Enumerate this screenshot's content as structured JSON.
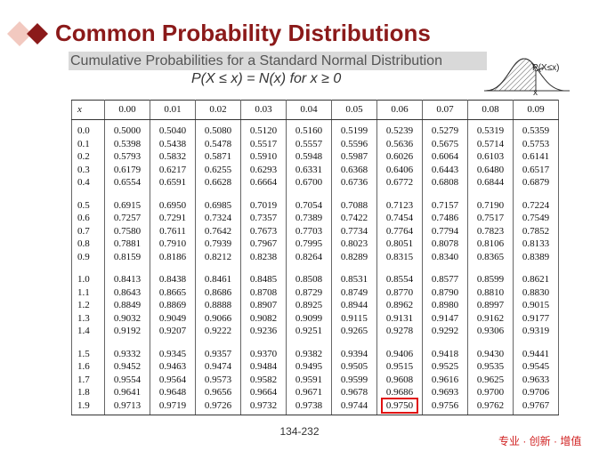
{
  "header": {
    "title": "Common Probability Distributions",
    "subtitle": "Cumulative Probabilities for a Standard Normal Distribution",
    "formula": "P(X ≤ x) = N(x) for x ≥ 0",
    "icon_label": "P(X≤x)",
    "icon_axis": "x"
  },
  "table": {
    "header": [
      "x",
      "0.00",
      "0.01",
      "0.02",
      "0.03",
      "0.04",
      "0.05",
      "0.06",
      "0.07",
      "0.08",
      "0.09"
    ],
    "rows": [
      [
        "0.0",
        "0.5000",
        "0.5040",
        "0.5080",
        "0.5120",
        "0.5160",
        "0.5199",
        "0.5239",
        "0.5279",
        "0.5319",
        "0.5359"
      ],
      [
        "0.1",
        "0.5398",
        "0.5438",
        "0.5478",
        "0.5517",
        "0.5557",
        "0.5596",
        "0.5636",
        "0.5675",
        "0.5714",
        "0.5753"
      ],
      [
        "0.2",
        "0.5793",
        "0.5832",
        "0.5871",
        "0.5910",
        "0.5948",
        "0.5987",
        "0.6026",
        "0.6064",
        "0.6103",
        "0.6141"
      ],
      [
        "0.3",
        "0.6179",
        "0.6217",
        "0.6255",
        "0.6293",
        "0.6331",
        "0.6368",
        "0.6406",
        "0.6443",
        "0.6480",
        "0.6517"
      ],
      [
        "0.4",
        "0.6554",
        "0.6591",
        "0.6628",
        "0.6664",
        "0.6700",
        "0.6736",
        "0.6772",
        "0.6808",
        "0.6844",
        "0.6879"
      ],
      [
        "0.5",
        "0.6915",
        "0.6950",
        "0.6985",
        "0.7019",
        "0.7054",
        "0.7088",
        "0.7123",
        "0.7157",
        "0.7190",
        "0.7224"
      ],
      [
        "0.6",
        "0.7257",
        "0.7291",
        "0.7324",
        "0.7357",
        "0.7389",
        "0.7422",
        "0.7454",
        "0.7486",
        "0.7517",
        "0.7549"
      ],
      [
        "0.7",
        "0.7580",
        "0.7611",
        "0.7642",
        "0.7673",
        "0.7703",
        "0.7734",
        "0.7764",
        "0.7794",
        "0.7823",
        "0.7852"
      ],
      [
        "0.8",
        "0.7881",
        "0.7910",
        "0.7939",
        "0.7967",
        "0.7995",
        "0.8023",
        "0.8051",
        "0.8078",
        "0.8106",
        "0.8133"
      ],
      [
        "0.9",
        "0.8159",
        "0.8186",
        "0.8212",
        "0.8238",
        "0.8264",
        "0.8289",
        "0.8315",
        "0.8340",
        "0.8365",
        "0.8389"
      ],
      [
        "1.0",
        "0.8413",
        "0.8438",
        "0.8461",
        "0.8485",
        "0.8508",
        "0.8531",
        "0.8554",
        "0.8577",
        "0.8599",
        "0.8621"
      ],
      [
        "1.1",
        "0.8643",
        "0.8665",
        "0.8686",
        "0.8708",
        "0.8729",
        "0.8749",
        "0.8770",
        "0.8790",
        "0.8810",
        "0.8830"
      ],
      [
        "1.2",
        "0.8849",
        "0.8869",
        "0.8888",
        "0.8907",
        "0.8925",
        "0.8944",
        "0.8962",
        "0.8980",
        "0.8997",
        "0.9015"
      ],
      [
        "1.3",
        "0.9032",
        "0.9049",
        "0.9066",
        "0.9082",
        "0.9099",
        "0.9115",
        "0.9131",
        "0.9147",
        "0.9162",
        "0.9177"
      ],
      [
        "1.4",
        "0.9192",
        "0.9207",
        "0.9222",
        "0.9236",
        "0.9251",
        "0.9265",
        "0.9278",
        "0.9292",
        "0.9306",
        "0.9319"
      ],
      [
        "1.5",
        "0.9332",
        "0.9345",
        "0.9357",
        "0.9370",
        "0.9382",
        "0.9394",
        "0.9406",
        "0.9418",
        "0.9430",
        "0.9441"
      ],
      [
        "1.6",
        "0.9452",
        "0.9463",
        "0.9474",
        "0.9484",
        "0.9495",
        "0.9505",
        "0.9515",
        "0.9525",
        "0.9535",
        "0.9545"
      ],
      [
        "1.7",
        "0.9554",
        "0.9564",
        "0.9573",
        "0.9582",
        "0.9591",
        "0.9599",
        "0.9608",
        "0.9616",
        "0.9625",
        "0.9633"
      ],
      [
        "1.8",
        "0.9641",
        "0.9648",
        "0.9656",
        "0.9664",
        "0.9671",
        "0.9678",
        "0.9686",
        "0.9693",
        "0.9700",
        "0.9706"
      ],
      [
        "1.9",
        "0.9713",
        "0.9719",
        "0.9726",
        "0.9732",
        "0.9738",
        "0.9744",
        "0.9750",
        "0.9756",
        "0.9762",
        "0.9767"
      ]
    ]
  },
  "footer": {
    "page": "134-232",
    "slogan": "专业 · 创新 · 增值"
  }
}
